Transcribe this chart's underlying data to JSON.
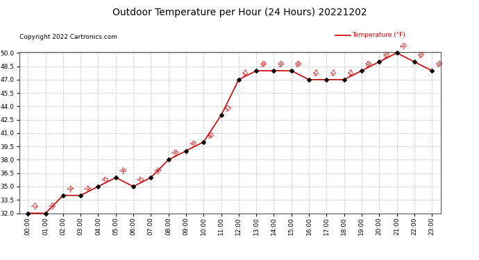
{
  "title": "Outdoor Temperature per Hour (24 Hours) 20221202",
  "copyright_text": "Copyright 2022 Cartronics.com",
  "legend_label": "Temperature (°F)",
  "hours": [
    "00:00",
    "01:00",
    "02:00",
    "03:00",
    "04:00",
    "05:00",
    "06:00",
    "07:00",
    "08:00",
    "09:00",
    "10:00",
    "11:00",
    "12:00",
    "13:00",
    "14:00",
    "15:00",
    "16:00",
    "17:00",
    "18:00",
    "19:00",
    "20:00",
    "21:00",
    "22:00",
    "23:00"
  ],
  "temperatures": [
    32,
    32,
    34,
    34,
    35,
    36,
    35,
    36,
    38,
    39,
    40,
    43,
    47,
    48,
    48,
    48,
    47,
    47,
    47,
    48,
    49,
    50,
    49,
    48
  ],
  "line_color": "#cc0000",
  "marker_color": "#000000",
  "annotation_color": "#cc0000",
  "bg_color": "#ffffff",
  "grid_color": "#c8c8c8",
  "title_color": "#000000",
  "copyright_color": "#000000",
  "legend_color": "#cc0000",
  "ylim_min": 32.0,
  "ylim_max": 50.0,
  "ytick_step": 1.5
}
